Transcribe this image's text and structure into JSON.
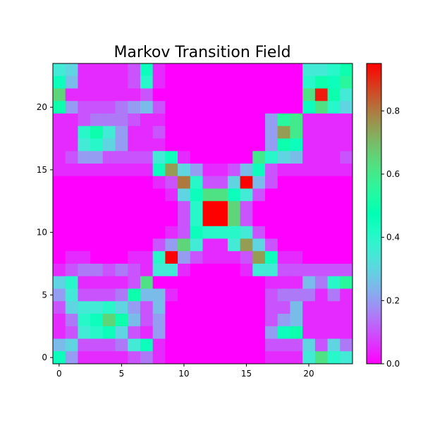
{
  "chart_data": {
    "type": "heatmap",
    "title": "Markov Transition Field",
    "colormap": "rainbow",
    "vmin": 0.0,
    "vmax": 0.95,
    "x_ticks": [
      0,
      5,
      10,
      15,
      20
    ],
    "y_ticks": [
      0,
      5,
      10,
      15,
      20
    ],
    "colorbar_ticks": [
      "0.0",
      "0.2",
      "0.4",
      "0.6",
      "0.8"
    ],
    "colorbar_tick_values": [
      0.0,
      0.2,
      0.4,
      0.6,
      0.8
    ],
    "rows_top_to_bottom": [
      [
        0.35,
        0.3,
        0.05,
        0.05,
        0.05,
        0.05,
        0.1,
        0.45,
        0.05,
        0.0,
        0.0,
        0.0,
        0.0,
        0.0,
        0.0,
        0.0,
        0.0,
        0.0,
        0.0,
        0.0,
        0.35,
        0.35,
        0.4,
        0.5
      ],
      [
        0.45,
        0.25,
        0.05,
        0.05,
        0.05,
        0.05,
        0.1,
        0.4,
        0.05,
        0.0,
        0.0,
        0.0,
        0.0,
        0.0,
        0.0,
        0.0,
        0.0,
        0.0,
        0.0,
        0.0,
        0.4,
        0.5,
        0.45,
        0.55
      ],
      [
        0.65,
        0.05,
        0.05,
        0.05,
        0.05,
        0.05,
        0.05,
        0.1,
        0.0,
        0.0,
        0.0,
        0.0,
        0.0,
        0.0,
        0.0,
        0.0,
        0.0,
        0.0,
        0.0,
        0.0,
        0.62,
        0.92,
        0.5,
        0.35
      ],
      [
        0.5,
        0.2,
        0.1,
        0.1,
        0.1,
        0.15,
        0.2,
        0.25,
        0.1,
        0.0,
        0.0,
        0.0,
        0.0,
        0.0,
        0.0,
        0.0,
        0.0,
        0.0,
        0.0,
        0.0,
        0.45,
        0.62,
        0.4,
        0.3
      ],
      [
        0.05,
        0.05,
        0.1,
        0.15,
        0.15,
        0.15,
        0.1,
        0.05,
        0.05,
        0.0,
        0.0,
        0.0,
        0.0,
        0.0,
        0.0,
        0.0,
        0.0,
        0.2,
        0.55,
        0.6,
        0.05,
        0.05,
        0.05,
        0.05
      ],
      [
        0.05,
        0.05,
        0.4,
        0.5,
        0.35,
        0.2,
        0.05,
        0.05,
        0.1,
        0.0,
        0.0,
        0.0,
        0.0,
        0.0,
        0.0,
        0.0,
        0.0,
        0.2,
        0.75,
        0.6,
        0.05,
        0.05,
        0.05,
        0.05
      ],
      [
        0.05,
        0.05,
        0.35,
        0.4,
        0.3,
        0.2,
        0.05,
        0.05,
        0.05,
        0.0,
        0.0,
        0.0,
        0.0,
        0.0,
        0.0,
        0.0,
        0.0,
        0.2,
        0.5,
        0.45,
        0.05,
        0.05,
        0.05,
        0.05
      ],
      [
        0.05,
        0.1,
        0.2,
        0.2,
        0.1,
        0.1,
        0.1,
        0.1,
        0.35,
        0.45,
        0.05,
        0.0,
        0.0,
        0.0,
        0.0,
        0.0,
        0.6,
        0.4,
        0.3,
        0.25,
        0.05,
        0.05,
        0.05,
        0.1
      ],
      [
        0.05,
        0.05,
        0.05,
        0.05,
        0.05,
        0.05,
        0.05,
        0.05,
        0.45,
        0.75,
        0.3,
        0.2,
        0.05,
        0.05,
        0.1,
        0.25,
        0.45,
        0.1,
        0.05,
        0.05,
        0.05,
        0.05,
        0.05,
        0.05
      ],
      [
        0.0,
        0.0,
        0.0,
        0.0,
        0.0,
        0.0,
        0.0,
        0.0,
        0.05,
        0.1,
        0.8,
        0.4,
        0.1,
        0.1,
        0.3,
        0.95,
        0.25,
        0.1,
        0.0,
        0.0,
        0.0,
        0.0,
        0.0,
        0.0
      ],
      [
        0.0,
        0.0,
        0.0,
        0.0,
        0.0,
        0.0,
        0.0,
        0.0,
        0.0,
        0.05,
        0.3,
        0.45,
        0.62,
        0.62,
        0.45,
        0.35,
        0.1,
        0.0,
        0.0,
        0.0,
        0.0,
        0.0,
        0.0,
        0.0
      ],
      [
        0.0,
        0.0,
        0.0,
        0.0,
        0.0,
        0.0,
        0.0,
        0.0,
        0.0,
        0.0,
        0.1,
        0.4,
        0.95,
        0.95,
        0.65,
        0.1,
        0.0,
        0.0,
        0.0,
        0.0,
        0.0,
        0.0,
        0.0,
        0.0
      ],
      [
        0.0,
        0.0,
        0.0,
        0.0,
        0.0,
        0.0,
        0.0,
        0.0,
        0.0,
        0.0,
        0.1,
        0.4,
        0.95,
        0.95,
        0.65,
        0.1,
        0.0,
        0.0,
        0.0,
        0.0,
        0.0,
        0.0,
        0.0,
        0.0
      ],
      [
        0.0,
        0.0,
        0.0,
        0.0,
        0.0,
        0.0,
        0.0,
        0.0,
        0.0,
        0.05,
        0.1,
        0.45,
        0.4,
        0.4,
        0.4,
        0.35,
        0.1,
        0.0,
        0.0,
        0.0,
        0.0,
        0.0,
        0.0,
        0.0
      ],
      [
        0.0,
        0.0,
        0.0,
        0.0,
        0.0,
        0.0,
        0.0,
        0.0,
        0.1,
        0.2,
        0.65,
        0.35,
        0.05,
        0.05,
        0.35,
        0.75,
        0.3,
        0.1,
        0.0,
        0.0,
        0.0,
        0.0,
        0.0,
        0.0
      ],
      [
        0.0,
        0.05,
        0.05,
        0.0,
        0.0,
        0.0,
        0.05,
        0.05,
        0.4,
        0.95,
        0.2,
        0.1,
        0.05,
        0.05,
        0.05,
        0.1,
        0.75,
        0.45,
        0.05,
        0.05,
        0.0,
        0.0,
        0.0,
        0.0
      ],
      [
        0.05,
        0.1,
        0.15,
        0.15,
        0.1,
        0.15,
        0.1,
        0.05,
        0.35,
        0.35,
        0.05,
        0.0,
        0.0,
        0.0,
        0.0,
        0.05,
        0.35,
        0.35,
        0.1,
        0.1,
        0.1,
        0.1,
        0.1,
        0.1
      ],
      [
        0.3,
        0.4,
        0.05,
        0.05,
        0.05,
        0.05,
        0.1,
        0.62,
        0.0,
        0.0,
        0.0,
        0.0,
        0.0,
        0.0,
        0.0,
        0.0,
        0.0,
        0.05,
        0.05,
        0.05,
        0.25,
        0.15,
        0.4,
        0.55
      ],
      [
        0.2,
        0.35,
        0.1,
        0.1,
        0.1,
        0.15,
        0.5,
        0.25,
        0.25,
        0.05,
        0.0,
        0.0,
        0.0,
        0.0,
        0.0,
        0.0,
        0.0,
        0.1,
        0.15,
        0.15,
        0.15,
        0.05,
        0.15,
        0.05
      ],
      [
        0.1,
        0.3,
        0.35,
        0.35,
        0.4,
        0.3,
        0.2,
        0.1,
        0.25,
        0.0,
        0.0,
        0.0,
        0.0,
        0.0,
        0.0,
        0.0,
        0.0,
        0.1,
        0.1,
        0.25,
        0.05,
        0.05,
        0.05,
        0.05
      ],
      [
        0.05,
        0.15,
        0.4,
        0.45,
        0.65,
        0.5,
        0.25,
        0.1,
        0.2,
        0.0,
        0.0,
        0.0,
        0.0,
        0.0,
        0.0,
        0.0,
        0.0,
        0.1,
        0.2,
        0.25,
        0.05,
        0.05,
        0.05,
        0.05
      ],
      [
        0.05,
        0.1,
        0.35,
        0.4,
        0.45,
        0.3,
        0.1,
        0.05,
        0.2,
        0.0,
        0.0,
        0.0,
        0.0,
        0.0,
        0.0,
        0.0,
        0.0,
        0.2,
        0.45,
        0.5,
        0.05,
        0.05,
        0.05,
        0.05
      ],
      [
        0.25,
        0.3,
        0.1,
        0.1,
        0.1,
        0.15,
        0.35,
        0.45,
        0.05,
        0.0,
        0.0,
        0.0,
        0.0,
        0.0,
        0.0,
        0.0,
        0.0,
        0.1,
        0.1,
        0.1,
        0.3,
        0.1,
        0.3,
        0.15
      ],
      [
        0.45,
        0.2,
        0.05,
        0.05,
        0.05,
        0.05,
        0.1,
        0.15,
        0.05,
        0.0,
        0.0,
        0.0,
        0.0,
        0.0,
        0.0,
        0.0,
        0.0,
        0.05,
        0.05,
        0.05,
        0.35,
        0.62,
        0.4,
        0.35
      ]
    ]
  }
}
